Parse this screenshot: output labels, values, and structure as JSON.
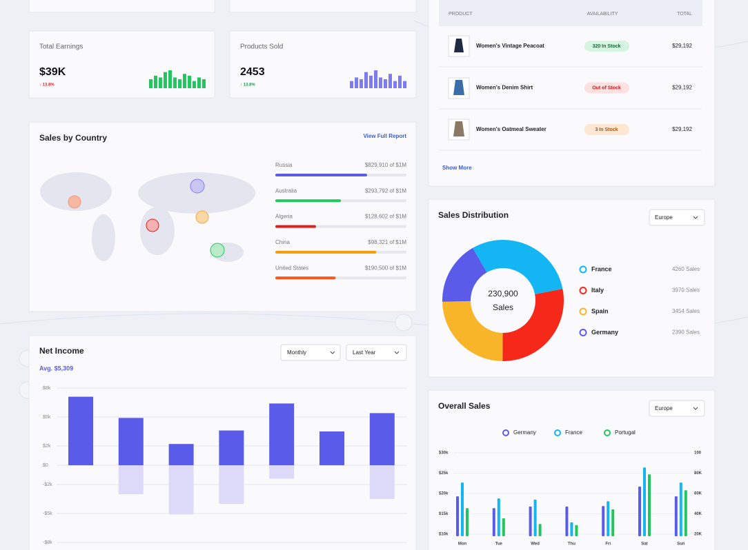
{
  "stat_cards": [
    {
      "label": "Total Earnings",
      "value": "$39K",
      "change": "↓ 13.8%",
      "color": "#22c55e",
      "change_color": "#dc2626",
      "sparkline": [
        5,
        7,
        6,
        9,
        10,
        6,
        5,
        8,
        7,
        4,
        6,
        5
      ]
    },
    {
      "label": "Products Sold",
      "value": "2453",
      "change": "↑ 13.8%",
      "color": "#7c7cf0",
      "change_color": "#16a34a",
      "sparkline": [
        4,
        6,
        5,
        9,
        7,
        10,
        6,
        5,
        8,
        4,
        7,
        4
      ]
    }
  ],
  "sales_by_country": {
    "title": "Sales by Country",
    "link": "View Full Report",
    "rows": [
      {
        "country": "Russia",
        "amount": "$829,910 of $1M",
        "progress": 70,
        "color": "#5b5bea"
      },
      {
        "country": "Australia",
        "amount": "$293,792 of $1M",
        "progress": 50,
        "color": "#22c55e"
      },
      {
        "country": "Algeria",
        "amount": "$128,602 of $1M",
        "progress": 31,
        "color": "#e11d1d"
      },
      {
        "country": "China",
        "amount": "$98,321 of $1M",
        "progress": 77,
        "color": "#f59e0b"
      },
      {
        "country": "United States",
        "amount": "$190,500 of $1M",
        "progress": 46,
        "color": "#f9581a"
      }
    ]
  },
  "products": {
    "columns": [
      "PRODUCT",
      "AVAILABILITY",
      "TOTAL"
    ],
    "rows": [
      {
        "name": "Women's Vintage Peacoat",
        "availability": "320 In Stock",
        "total": "$29,192"
      },
      {
        "name": "Women's Denim Shirt",
        "availability": "Out of Stock",
        "total": "$29,192"
      },
      {
        "name": "Women's Oatmeal Sweater",
        "availability": "3 In Stock",
        "total": "$29,192"
      }
    ],
    "show_more": "Show More"
  },
  "sales_distribution": {
    "title": "Sales Distribution",
    "dropdown": "Europe",
    "center_value": "230,900",
    "center_label": "Sales",
    "segments": [
      {
        "name": "France",
        "color": "#13b5f2",
        "sales": 4260,
        "sales_label": "4260 Sales"
      },
      {
        "name": "Italy",
        "color": "#f5281a",
        "sales": 3970,
        "sales_label": "3970 Sales"
      },
      {
        "name": "Spain",
        "color": "#f8b52a",
        "sales": 3454,
        "sales_label": "3454 Sales"
      },
      {
        "name": "Germany",
        "color": "#5b5bea",
        "sales": 2390,
        "sales_label": "2390 Sales"
      }
    ]
  },
  "net_income": {
    "title": "Net Income",
    "average": "Avg. $5,309",
    "dropdowns": [
      "Monthly",
      "Last Year"
    ],
    "ylim": [
      -8000,
      8000
    ],
    "yticks": [
      {
        "value": 8000,
        "label": "$8k"
      },
      {
        "value": 5000,
        "label": "$5k"
      },
      {
        "value": 2000,
        "label": "$2k"
      },
      {
        "value": 0,
        "label": "$0"
      },
      {
        "value": -2000,
        "label": "-$2k"
      },
      {
        "value": -5000,
        "label": "-$5k"
      },
      {
        "value": -8000,
        "label": "-$8k"
      }
    ],
    "positive": {
      "color": "#5b5bea",
      "values": [
        7100,
        4900,
        2200,
        3600,
        6400,
        3500,
        5400
      ]
    },
    "negative": {
      "color": "#dcdaf8",
      "values": [
        null,
        -3000,
        -5100,
        -4000,
        -1400,
        null,
        -3500
      ]
    }
  },
  "overall_sales": {
    "title": "Overall Sales",
    "dropdown": "Europe",
    "categories": [
      "Mon",
      "Tue",
      "Wed",
      "Thu",
      "Fri",
      "Sat",
      "Sun"
    ],
    "ylim": [
      10000,
      30000
    ],
    "yticks": [
      {
        "value": 30000,
        "label": "$30k"
      },
      {
        "value": 25000,
        "label": "$25k"
      },
      {
        "value": 20000,
        "label": "$20k"
      },
      {
        "value": 15000,
        "label": "$15k"
      },
      {
        "value": 10000,
        "label": "$10k"
      }
    ],
    "y2lim": [
      20,
      100
    ],
    "y2ticks": [
      100,
      {
        "value": 80,
        "label": "80K"
      },
      {
        "value": 60,
        "label": "60K"
      },
      {
        "value": 40,
        "label": "40K"
      },
      {
        "value": 20,
        "label": "20K"
      }
    ],
    "series": [
      {
        "name": "Germany",
        "color": "#5b5bea",
        "values": [
          19300,
          16400,
          16800,
          16800,
          16900,
          21700,
          19300
        ]
      },
      {
        "name": "France",
        "color": "#13b5f2",
        "values": [
          22700,
          18800,
          18500,
          12900,
          18100,
          26400,
          22700
        ]
      },
      {
        "name": "Portugal",
        "color": "#22c55e",
        "values": [
          16400,
          13900,
          12500,
          12200,
          16100,
          24700,
          20800
        ]
      }
    ]
  }
}
